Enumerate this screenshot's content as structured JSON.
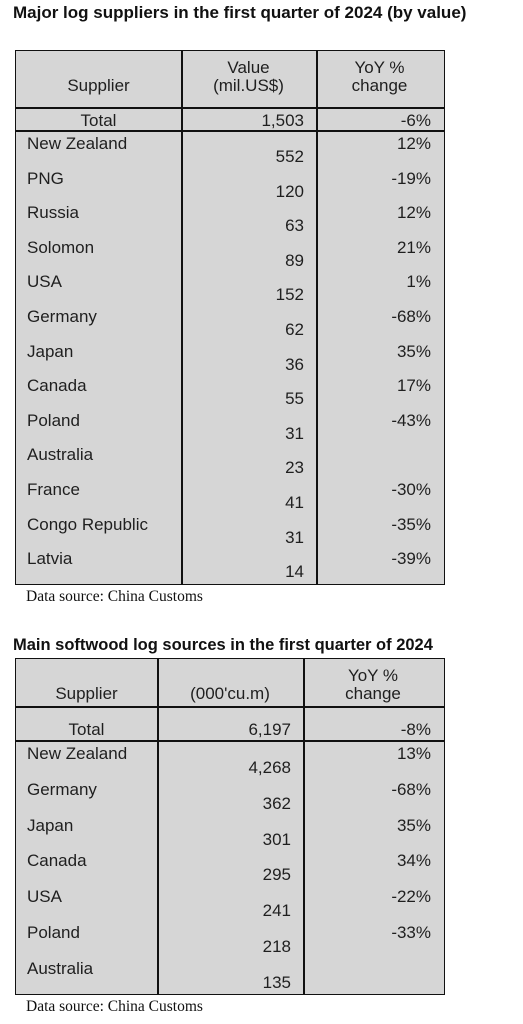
{
  "table1": {
    "title": "Major log suppliers in the first quarter of 2024 (by value)",
    "headers": {
      "supplier": "Supplier",
      "value": "Value\n(mil.US$)",
      "yoy": "YoY %\nchange"
    },
    "total": {
      "supplier": "Total",
      "value": "1,503",
      "yoy": "-6%"
    },
    "rows": [
      {
        "supplier": "New Zealand",
        "value": "552",
        "yoy": "12%"
      },
      {
        "supplier": "PNG",
        "value": "120",
        "yoy": "-19%"
      },
      {
        "supplier": "Russia",
        "value": "63",
        "yoy": "12%"
      },
      {
        "supplier": "Solomon",
        "value": "89",
        "yoy": "21%"
      },
      {
        "supplier": "USA",
        "value": "152",
        "yoy": "1%"
      },
      {
        "supplier": "Germany",
        "value": "62",
        "yoy": "-68%"
      },
      {
        "supplier": "Japan",
        "value": "36",
        "yoy": "35%"
      },
      {
        "supplier": "Canada",
        "value": "55",
        "yoy": "17%"
      },
      {
        "supplier": "Poland",
        "value": "31",
        "yoy": "-43%"
      },
      {
        "supplier": "Australia",
        "value": "23",
        "yoy": ""
      },
      {
        "supplier": "France",
        "value": "41",
        "yoy": "-30%"
      },
      {
        "supplier": "Congo Republic",
        "value": "31",
        "yoy": "-35%"
      },
      {
        "supplier": "Latvia",
        "value": "14",
        "yoy": "-39%"
      }
    ],
    "source": "Data source: China Customs"
  },
  "table2": {
    "title": "Main softwood log sources in the first quarter of 2024",
    "headers": {
      "supplier": "Supplier",
      "value": "(000'cu.m)",
      "yoy": "YoY %\nchange"
    },
    "total": {
      "supplier": "Total",
      "value": "6,197",
      "yoy": "-8%"
    },
    "rows": [
      {
        "supplier": "New Zealand",
        "value": "4,268",
        "yoy": "13%"
      },
      {
        "supplier": "Germany",
        "value": "362",
        "yoy": "-68%"
      },
      {
        "supplier": "Japan",
        "value": "301",
        "yoy": "35%"
      },
      {
        "supplier": "Canada",
        "value": "295",
        "yoy": "34%"
      },
      {
        "supplier": "USA",
        "value": "241",
        "yoy": "-22%"
      },
      {
        "supplier": "Poland",
        "value": "218",
        "yoy": "-33%"
      },
      {
        "supplier": "Australia",
        "value": "135",
        "yoy": ""
      }
    ],
    "source": "Data source: China Customs"
  }
}
